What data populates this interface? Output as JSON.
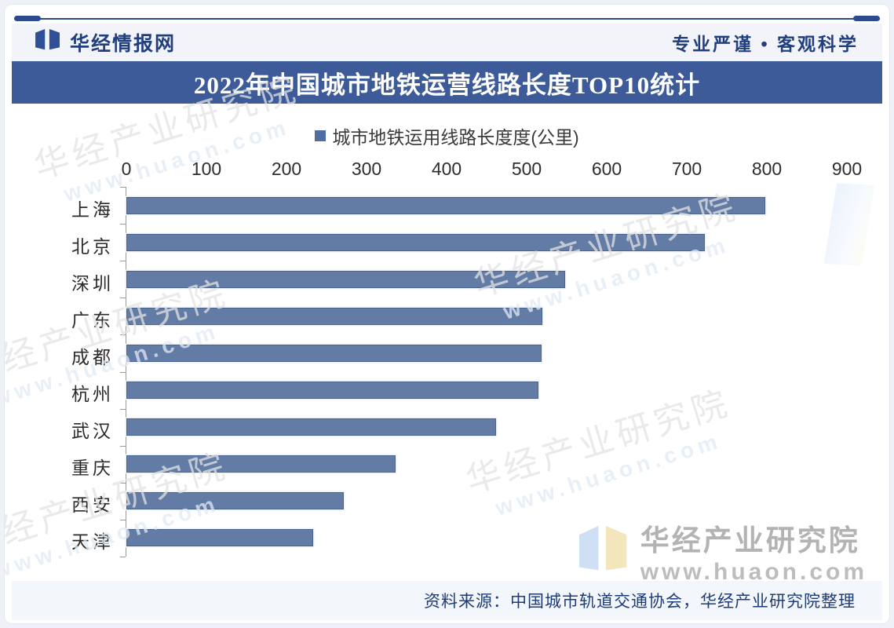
{
  "header": {
    "brand": "华经情报网",
    "slogan": "专业严谨 • 客观科学"
  },
  "title": "2022年中国城市地铁运营线路长度TOP10统计",
  "legend": {
    "label": "城市地铁运用线路长度度(公里)",
    "swatch_color": "#4f6da0"
  },
  "chart_data": {
    "type": "bar",
    "orientation": "horizontal",
    "title": "2022年中国城市地铁运营线路长度TOP10统计",
    "legend_entries": [
      "城市地铁运用线路长度度(公里)"
    ],
    "legend_position": "top",
    "categories": [
      "上海",
      "北京",
      "深圳",
      "广东",
      "成都",
      "杭州",
      "武汉",
      "重庆",
      "西安",
      "天津"
    ],
    "values": [
      798,
      723,
      548,
      520,
      519,
      515,
      462,
      336,
      272,
      233
    ],
    "xlabel": "",
    "ylabel": "",
    "xlim": [
      0,
      900
    ],
    "xticks": [
      0,
      100,
      200,
      300,
      400,
      500,
      600,
      700,
      800,
      900
    ],
    "grid": false,
    "bar_color": "#637ca5",
    "bar_border_color": "#49648f"
  },
  "watermark": {
    "name": "华经产业研究院",
    "url": "www.huaon.com"
  },
  "source": "资料来源：中国城市轨道交通协会，华经产业研究院整理",
  "colors": {
    "title_bar_bg": "#3d5b99",
    "accent_navy": "#2c4b8f",
    "header_bg": "#f2f4f9",
    "axis_gray": "#9b9b9b"
  }
}
